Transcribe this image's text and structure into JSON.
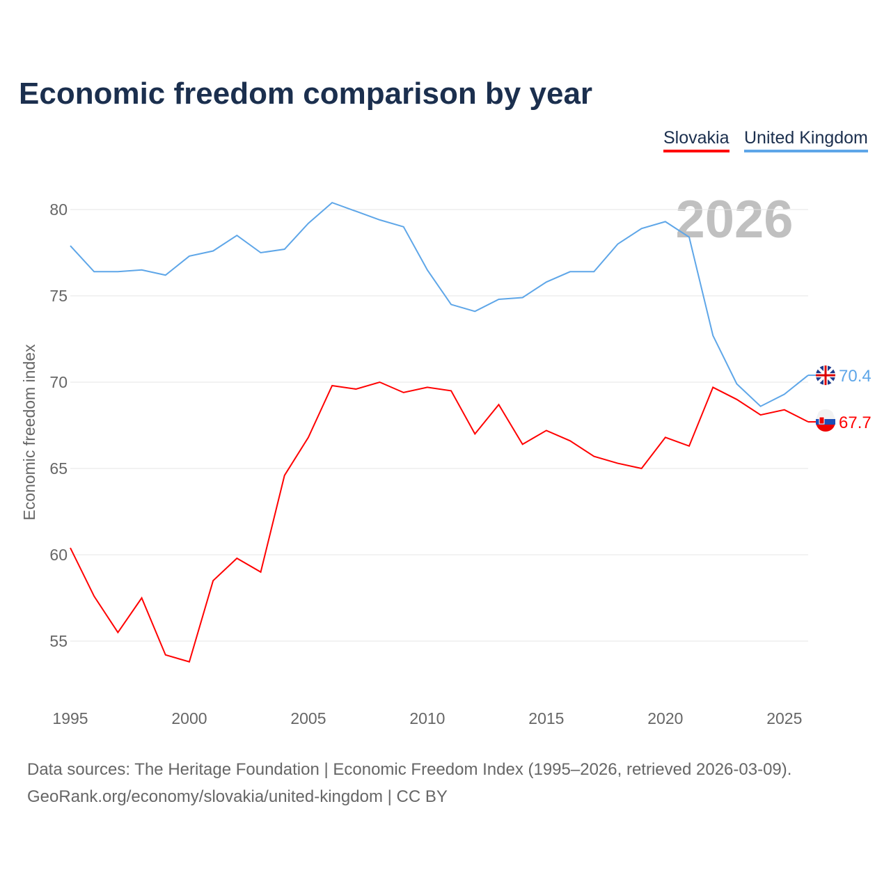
{
  "chart_data": {
    "type": "line",
    "title": "Economic freedom comparison by year",
    "xlabel": "",
    "ylabel": "Economic freedom index",
    "xlim": [
      1995,
      2026
    ],
    "ylim": [
      52,
      82
    ],
    "x_ticks": [
      1995,
      2000,
      2005,
      2010,
      2015,
      2020,
      2025
    ],
    "y_ticks": [
      55,
      60,
      65,
      70,
      75,
      80
    ],
    "grid": true,
    "legend_position": "top-right",
    "watermark_year": "2026",
    "x": [
      1995,
      1996,
      1997,
      1998,
      1999,
      2000,
      2001,
      2002,
      2003,
      2004,
      2005,
      2006,
      2007,
      2008,
      2009,
      2010,
      2011,
      2012,
      2013,
      2014,
      2015,
      2016,
      2017,
      2018,
      2019,
      2020,
      2021,
      2022,
      2023,
      2024,
      2025,
      2026
    ],
    "series": [
      {
        "name": "Slovakia",
        "color": "#ff0000",
        "end_label": "67.7",
        "flag": "slovakia-flag",
        "values": [
          60.4,
          57.6,
          55.5,
          57.5,
          54.2,
          53.8,
          58.5,
          59.8,
          59.0,
          64.6,
          66.8,
          69.8,
          69.6,
          70.0,
          69.4,
          69.7,
          69.5,
          67.0,
          68.7,
          66.4,
          67.2,
          66.6,
          65.7,
          65.3,
          65.0,
          66.8,
          66.3,
          69.7,
          69.0,
          68.1,
          68.4,
          67.7
        ]
      },
      {
        "name": "United Kingdom",
        "color": "#5ea6e8",
        "end_label": "70.4",
        "flag": "uk-flag",
        "values": [
          77.9,
          76.4,
          76.4,
          76.5,
          76.2,
          77.3,
          77.6,
          78.5,
          77.5,
          77.7,
          79.2,
          80.4,
          79.9,
          79.4,
          79.0,
          76.5,
          74.5,
          74.1,
          74.8,
          74.9,
          75.8,
          76.4,
          76.4,
          78.0,
          78.9,
          79.3,
          78.4,
          72.7,
          69.9,
          68.6,
          69.3,
          70.4
        ]
      }
    ]
  },
  "footer": {
    "line1": "Data sources: The Heritage Foundation | Economic Freedom Index (1995–2026, retrieved 2026-03-09).",
    "line2": "GeoRank.org/economy/slovakia/united-kingdom | CC BY"
  }
}
